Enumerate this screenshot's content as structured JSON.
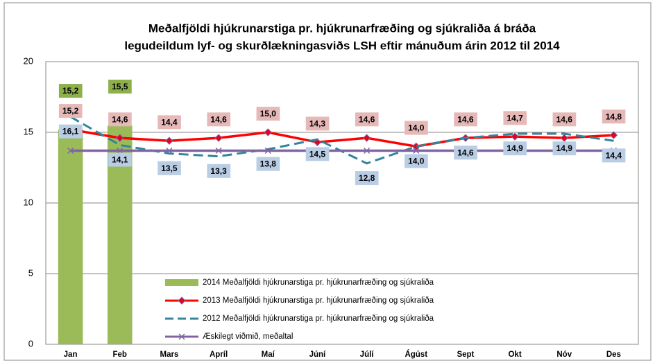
{
  "chart_data": {
    "type": "line",
    "title": [
      "Meðalfjöldi hjúkrunarstiga pr. hjúkrunarfræðing og sjúkraliða á bráða",
      "legudeildum lyf- og skurðlækningasviðs LSH eftir mánuðum árin 2012 til 2014"
    ],
    "categories": [
      "Jan",
      "Feb",
      "Mars",
      "Apríl",
      "Maí",
      "Júní",
      "Júlí",
      "Ágúst",
      "Sept",
      "Okt",
      "Nóv",
      "Des"
    ],
    "ylim": [
      0,
      20
    ],
    "yticks": [
      0,
      5,
      10,
      15,
      20
    ],
    "grid": true,
    "legend": "bottom",
    "series": [
      {
        "name": "2014 Meðalfjöldi hjúkrunarstiga pr. hjúkrunarfræðing og sjúkraliða",
        "type": "bar",
        "color": "#9bbb59",
        "label_color": "#8db04a",
        "values": [
          15.2,
          15.5,
          null,
          null,
          null,
          null,
          null,
          null,
          null,
          null,
          null,
          null
        ],
        "value_labels": [
          "15,2",
          "15,5",
          null,
          null,
          null,
          null,
          null,
          null,
          null,
          null,
          null,
          null
        ]
      },
      {
        "name": "2013 Meðalfjöldi hjúkrunarstiga pr. hjúkrunarfræðing og sjúkraliða",
        "type": "line",
        "color": "#ff0000",
        "marker": "diamond",
        "label_color": "#e6b9b8",
        "values": [
          15.2,
          14.6,
          14.4,
          14.6,
          15.0,
          14.3,
          14.6,
          14.0,
          14.6,
          14.7,
          14.6,
          14.8
        ],
        "value_labels": [
          "15,2",
          "14,6",
          "14,4",
          "14,6",
          "15,0",
          "14,3",
          "14,6",
          "14,0",
          "14,6",
          "14,7",
          "14,6",
          "14,8"
        ]
      },
      {
        "name": "2012 Meðalfjöldi hjúkrunarstiga pr. hjúkrunarfræðing og sjúkraliða",
        "type": "line",
        "color": "#31859c",
        "dashed": true,
        "label_color": "#b9cde5",
        "values": [
          16.1,
          14.1,
          13.5,
          13.3,
          13.8,
          14.5,
          12.8,
          14.0,
          14.6,
          14.9,
          14.9,
          14.4
        ],
        "value_labels": [
          "16,1",
          "14,1",
          "13,5",
          "13,3",
          "13,8",
          "14,5",
          "12,8",
          "14,0",
          "14,6",
          "14,9",
          "14,9",
          "14,4"
        ]
      },
      {
        "name": "Æskilegt viðmið, meðaltal",
        "type": "line",
        "color": "#8064a2",
        "marker": "x",
        "values": [
          13.7,
          13.7,
          13.7,
          13.7,
          13.7,
          13.7,
          13.7,
          13.7,
          13.7,
          13.7,
          13.7,
          13.7
        ]
      }
    ]
  }
}
